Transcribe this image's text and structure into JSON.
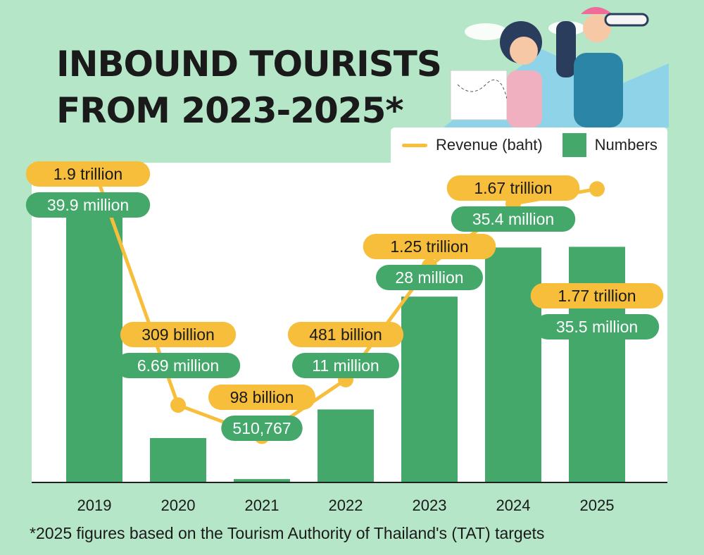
{
  "title_lines": [
    "INBOUND TOURISTS",
    "FROM 2023-2025*"
  ],
  "footnote": "*2025 figures based on the Tourism Authority of Thailand's (TAT) targets",
  "legend": {
    "line_label": "Revenue (baht)",
    "bar_label": "Numbers"
  },
  "colors": {
    "bar": "#45a86b",
    "line": "#f6be3a",
    "background": "#b5e6c8",
    "revenue_pill": "#f6be3a",
    "numbers_pill": "#45a86b"
  },
  "chart_data": {
    "type": "bar+line",
    "categories": [
      "2019",
      "2020",
      "2021",
      "2022",
      "2023",
      "2024",
      "2025"
    ],
    "series": [
      {
        "name": "Numbers",
        "type": "bar",
        "values": [
          39900000,
          6690000,
          510767,
          11000000,
          28000000,
          35400000,
          35500000
        ],
        "labels": [
          "39.9 million",
          "6.69 million",
          "510,767",
          "11 million",
          "28 million",
          "35.4 million",
          "35.5 million"
        ]
      },
      {
        "name": "Revenue (baht)",
        "type": "line",
        "values": [
          1900000000000,
          309000000000,
          98000000000,
          481000000000,
          1250000000000,
          1670000000000,
          1770000000000
        ],
        "labels": [
          "1.9 trillion",
          "309 billion",
          "98 billion",
          "481 billion",
          "1.25 trillion",
          "1.67 trillion",
          "1.77 trillion"
        ]
      }
    ],
    "grid": false,
    "legend_position": "top-right"
  }
}
